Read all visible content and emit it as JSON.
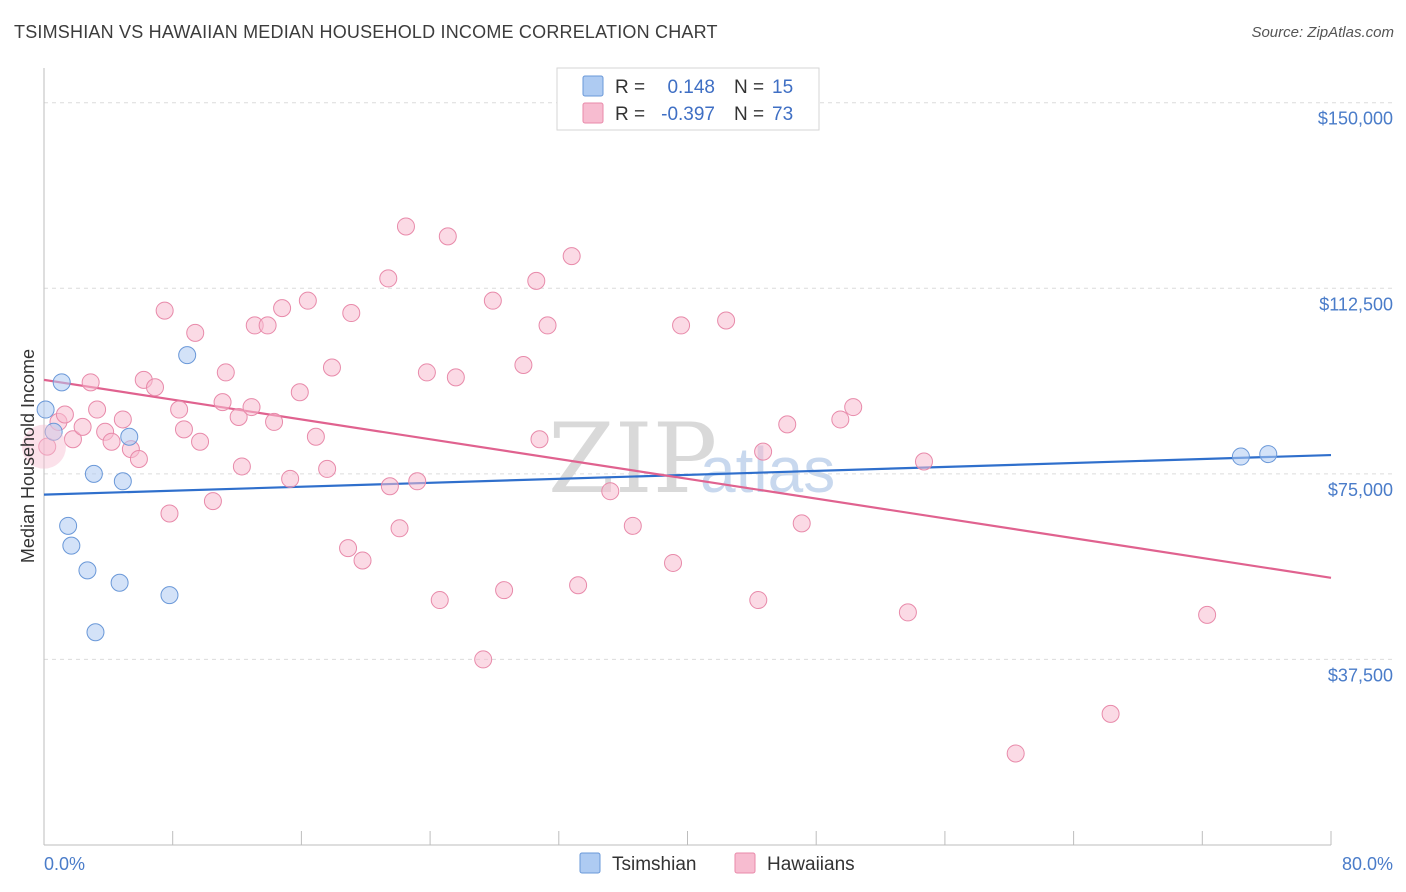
{
  "title": "TSIMSHIAN VS HAWAIIAN MEDIAN HOUSEHOLD INCOME CORRELATION CHART",
  "source": "Source: ZipAtlas.com",
  "watermark": {
    "zip": "ZIP",
    "atlas": "atlas"
  },
  "legend_top": {
    "rows": [
      {
        "r_label": "R =",
        "r_value": "0.148",
        "n_label": "N =",
        "n_value": "15",
        "color": "#aecbf2"
      },
      {
        "r_label": "R =",
        "r_value": "-0.397",
        "n_label": "N =",
        "n_value": "73",
        "color": "#f7bcd0"
      }
    ]
  },
  "legend_bottom": {
    "items": [
      {
        "label": "Tsimshian",
        "color": "#aecbf2"
      },
      {
        "label": "Hawaiians",
        "color": "#f7bcd0"
      }
    ]
  },
  "chart_data": {
    "type": "scatter",
    "title": "TSIMSHIAN VS HAWAIIAN MEDIAN HOUSEHOLD INCOME CORRELATION CHART",
    "xlabel": "",
    "ylabel": "Median Household Income",
    "xlim": [
      0,
      80
    ],
    "ylim": [
      0,
      155000
    ],
    "x_tick_labels": [
      "0.0%",
      "80.0%"
    ],
    "y_ticks": [
      37500,
      75000,
      112500,
      150000
    ],
    "y_tick_labels": [
      "$37,500",
      "$75,000",
      "$112,500",
      "$150,000"
    ],
    "series": [
      {
        "name": "Tsimshian",
        "color": "#aecbf2",
        "stroke": "#6a98d8",
        "line_color": "#2f6fcc",
        "trend": {
          "x": [
            0,
            80
          ],
          "y": [
            70800,
            78800
          ]
        },
        "points": [
          {
            "x": 0.1,
            "y": 88000
          },
          {
            "x": 0.6,
            "y": 83500
          },
          {
            "x": 1.1,
            "y": 93500
          },
          {
            "x": 1.5,
            "y": 64500
          },
          {
            "x": 1.7,
            "y": 60500
          },
          {
            "x": 2.7,
            "y": 55500
          },
          {
            "x": 3.1,
            "y": 75000
          },
          {
            "x": 3.2,
            "y": 43000
          },
          {
            "x": 4.7,
            "y": 53000
          },
          {
            "x": 5.3,
            "y": 82500
          },
          {
            "x": 4.9,
            "y": 73500
          },
          {
            "x": 7.8,
            "y": 50500
          },
          {
            "x": 8.9,
            "y": 99000
          },
          {
            "x": 74.4,
            "y": 78500
          },
          {
            "x": 76.1,
            "y": 79000
          }
        ]
      },
      {
        "name": "Hawaiians",
        "color": "#f7bcd0",
        "stroke": "#e88aaa",
        "line_color": "#e0628f",
        "trend": {
          "x": [
            0,
            80
          ],
          "y": [
            94000,
            54000
          ]
        },
        "points": [
          {
            "x": 0.2,
            "y": 80500
          },
          {
            "x": 0.9,
            "y": 85500
          },
          {
            "x": 1.3,
            "y": 87000
          },
          {
            "x": 1.8,
            "y": 82000
          },
          {
            "x": 2.4,
            "y": 84500
          },
          {
            "x": 2.9,
            "y": 93500
          },
          {
            "x": 3.3,
            "y": 88000
          },
          {
            "x": 3.8,
            "y": 83500
          },
          {
            "x": 4.2,
            "y": 81500
          },
          {
            "x": 4.9,
            "y": 86000
          },
          {
            "x": 5.4,
            "y": 80000
          },
          {
            "x": 5.9,
            "y": 78000
          },
          {
            "x": 6.2,
            "y": 94000
          },
          {
            "x": 6.9,
            "y": 92500
          },
          {
            "x": 7.5,
            "y": 108000
          },
          {
            "x": 7.8,
            "y": 67000
          },
          {
            "x": 8.4,
            "y": 88000
          },
          {
            "x": 8.7,
            "y": 84000
          },
          {
            "x": 9.4,
            "y": 103500
          },
          {
            "x": 9.7,
            "y": 81500
          },
          {
            "x": 10.5,
            "y": 69500
          },
          {
            "x": 11.1,
            "y": 89500
          },
          {
            "x": 11.3,
            "y": 95500
          },
          {
            "x": 12.1,
            "y": 86500
          },
          {
            "x": 12.3,
            "y": 76500
          },
          {
            "x": 12.9,
            "y": 88500
          },
          {
            "x": 13.1,
            "y": 105000
          },
          {
            "x": 13.9,
            "y": 105000
          },
          {
            "x": 14.3,
            "y": 85500
          },
          {
            "x": 14.8,
            "y": 108500
          },
          {
            "x": 15.3,
            "y": 74000
          },
          {
            "x": 15.9,
            "y": 91500
          },
          {
            "x": 16.4,
            "y": 110000
          },
          {
            "x": 16.9,
            "y": 82500
          },
          {
            "x": 17.6,
            "y": 76000
          },
          {
            "x": 17.9,
            "y": 96500
          },
          {
            "x": 18.9,
            "y": 60000
          },
          {
            "x": 19.1,
            "y": 107500
          },
          {
            "x": 19.8,
            "y": 57500
          },
          {
            "x": 21.4,
            "y": 114500
          },
          {
            "x": 21.5,
            "y": 72500
          },
          {
            "x": 22.1,
            "y": 64000
          },
          {
            "x": 22.5,
            "y": 125000
          },
          {
            "x": 23.2,
            "y": 73500
          },
          {
            "x": 23.8,
            "y": 95500
          },
          {
            "x": 24.6,
            "y": 49500
          },
          {
            "x": 25.1,
            "y": 123000
          },
          {
            "x": 25.6,
            "y": 94500
          },
          {
            "x": 27.3,
            "y": 37500
          },
          {
            "x": 27.9,
            "y": 110000
          },
          {
            "x": 28.6,
            "y": 51500
          },
          {
            "x": 29.8,
            "y": 97000
          },
          {
            "x": 30.6,
            "y": 114000
          },
          {
            "x": 30.8,
            "y": 82000
          },
          {
            "x": 31.3,
            "y": 105000
          },
          {
            "x": 32.8,
            "y": 119000
          },
          {
            "x": 33.2,
            "y": 52500
          },
          {
            "x": 35.2,
            "y": 71500
          },
          {
            "x": 36.6,
            "y": 64500
          },
          {
            "x": 39.1,
            "y": 57000
          },
          {
            "x": 39.6,
            "y": 105000
          },
          {
            "x": 42.4,
            "y": 106000
          },
          {
            "x": 44.4,
            "y": 49500
          },
          {
            "x": 44.7,
            "y": 79500
          },
          {
            "x": 46.2,
            "y": 85000
          },
          {
            "x": 47.1,
            "y": 65000
          },
          {
            "x": 49.5,
            "y": 86000
          },
          {
            "x": 50.3,
            "y": 88500
          },
          {
            "x": 53.7,
            "y": 47000
          },
          {
            "x": 54.7,
            "y": 77500
          },
          {
            "x": 60.4,
            "y": 18500
          },
          {
            "x": 66.3,
            "y": 26500
          },
          {
            "x": 72.3,
            "y": 46500
          }
        ]
      }
    ]
  }
}
